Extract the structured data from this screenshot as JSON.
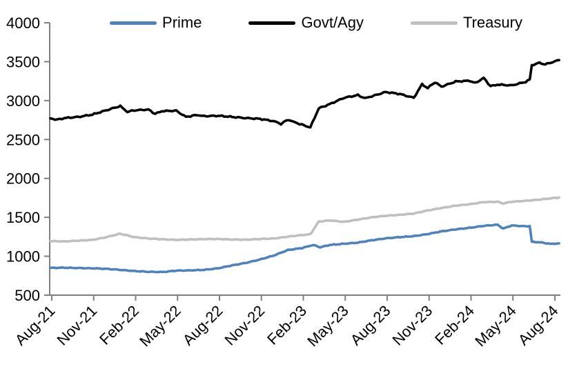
{
  "chart_data": {
    "type": "line",
    "title": "",
    "legend_position": "top",
    "grid": false,
    "x_axis": {
      "tick_labels": [
        "Aug-21",
        "Nov-21",
        "Feb-22",
        "May-22",
        "Aug-22",
        "Nov-22",
        "Feb-23",
        "May-23",
        "Aug-23",
        "Nov-23",
        "Feb-24",
        "May-24",
        "Aug-24"
      ],
      "tick_month_offsets": [
        0,
        3,
        6,
        9,
        12,
        15,
        18,
        21,
        24,
        27,
        30,
        33,
        36
      ],
      "label_rotation_deg": -45
    },
    "y_axis": {
      "min": 500,
      "max": 4000,
      "step": 500,
      "tick_labels": [
        "500",
        "1000",
        "1500",
        "2000",
        "2500",
        "3000",
        "3500",
        "4000"
      ]
    },
    "axis_color": "#7f7f7f",
    "series": [
      {
        "name": "Prime",
        "color": "#4F81BD",
        "jitter": 5,
        "points": [
          [
            0,
            850
          ],
          [
            1,
            853
          ],
          [
            2,
            848
          ],
          [
            3,
            845
          ],
          [
            4,
            838
          ],
          [
            5,
            825
          ],
          [
            6,
            810
          ],
          [
            7,
            800
          ],
          [
            8,
            797
          ],
          [
            9,
            815
          ],
          [
            10,
            818
          ],
          [
            11,
            825
          ],
          [
            12,
            845
          ],
          [
            13,
            882
          ],
          [
            14,
            915
          ],
          [
            15,
            958
          ],
          [
            16,
            1010
          ],
          [
            17,
            1080
          ],
          [
            18,
            1105
          ],
          [
            18.8,
            1145
          ],
          [
            19.3,
            1115
          ],
          [
            20,
            1145
          ],
          [
            21,
            1160
          ],
          [
            22,
            1175
          ],
          [
            23,
            1205
          ],
          [
            24,
            1230
          ],
          [
            25,
            1245
          ],
          [
            26,
            1258
          ],
          [
            27,
            1285
          ],
          [
            28,
            1320
          ],
          [
            29,
            1345
          ],
          [
            30,
            1365
          ],
          [
            31,
            1390
          ],
          [
            32,
            1405
          ],
          [
            32.4,
            1355
          ],
          [
            33,
            1395
          ],
          [
            34,
            1385
          ],
          [
            34.3,
            1388
          ],
          [
            34.45,
            1185
          ],
          [
            35,
            1180
          ],
          [
            35.8,
            1158
          ],
          [
            36.4,
            1165
          ]
        ]
      },
      {
        "name": "Govt/Agy",
        "color": "#000000",
        "jitter": 9,
        "points": [
          [
            0,
            2770
          ],
          [
            0.5,
            2755
          ],
          [
            1,
            2775
          ],
          [
            2,
            2790
          ],
          [
            3,
            2820
          ],
          [
            4,
            2875
          ],
          [
            5,
            2930
          ],
          [
            5.5,
            2855
          ],
          [
            6,
            2875
          ],
          [
            7,
            2885
          ],
          [
            7.5,
            2830
          ],
          [
            8,
            2865
          ],
          [
            9,
            2870
          ],
          [
            9.7,
            2790
          ],
          [
            10.5,
            2815
          ],
          [
            11,
            2800
          ],
          [
            12,
            2805
          ],
          [
            13,
            2790
          ],
          [
            14,
            2775
          ],
          [
            15,
            2765
          ],
          [
            16,
            2735
          ],
          [
            16.5,
            2700
          ],
          [
            17,
            2755
          ],
          [
            17.5,
            2720
          ],
          [
            18,
            2690
          ],
          [
            18.6,
            2655
          ],
          [
            19.2,
            2900
          ],
          [
            20,
            2955
          ],
          [
            21,
            3035
          ],
          [
            22,
            3070
          ],
          [
            22.5,
            3030
          ],
          [
            23,
            3055
          ],
          [
            24,
            3110
          ],
          [
            25,
            3085
          ],
          [
            26,
            3035
          ],
          [
            26.6,
            3210
          ],
          [
            27,
            3160
          ],
          [
            27.5,
            3235
          ],
          [
            28,
            3180
          ],
          [
            29,
            3245
          ],
          [
            30,
            3255
          ],
          [
            30.4,
            3225
          ],
          [
            31,
            3290
          ],
          [
            31.5,
            3185
          ],
          [
            32,
            3205
          ],
          [
            33,
            3195
          ],
          [
            34,
            3240
          ],
          [
            34.3,
            3270
          ],
          [
            34.45,
            3455
          ],
          [
            35,
            3485
          ],
          [
            35.4,
            3465
          ],
          [
            36.4,
            3520
          ]
        ]
      },
      {
        "name": "Treasury",
        "color": "#BFBFBF",
        "jitter": 5,
        "points": [
          [
            0,
            1195
          ],
          [
            1,
            1190
          ],
          [
            2,
            1200
          ],
          [
            3,
            1210
          ],
          [
            4,
            1245
          ],
          [
            5,
            1290
          ],
          [
            6,
            1245
          ],
          [
            7,
            1228
          ],
          [
            8,
            1218
          ],
          [
            9,
            1210
          ],
          [
            10,
            1215
          ],
          [
            11,
            1220
          ],
          [
            12,
            1222
          ],
          [
            13,
            1215
          ],
          [
            14,
            1212
          ],
          [
            15,
            1222
          ],
          [
            16,
            1228
          ],
          [
            17,
            1252
          ],
          [
            18,
            1272
          ],
          [
            18.6,
            1282
          ],
          [
            19.2,
            1445
          ],
          [
            20,
            1460
          ],
          [
            21,
            1442
          ],
          [
            22,
            1470
          ],
          [
            23,
            1500
          ],
          [
            24,
            1520
          ],
          [
            25,
            1532
          ],
          [
            26,
            1548
          ],
          [
            27,
            1588
          ],
          [
            28,
            1620
          ],
          [
            29,
            1650
          ],
          [
            30,
            1668
          ],
          [
            31,
            1695
          ],
          [
            32,
            1700
          ],
          [
            32.4,
            1678
          ],
          [
            33,
            1700
          ],
          [
            34,
            1712
          ],
          [
            35,
            1728
          ],
          [
            36.4,
            1755
          ]
        ]
      }
    ]
  }
}
